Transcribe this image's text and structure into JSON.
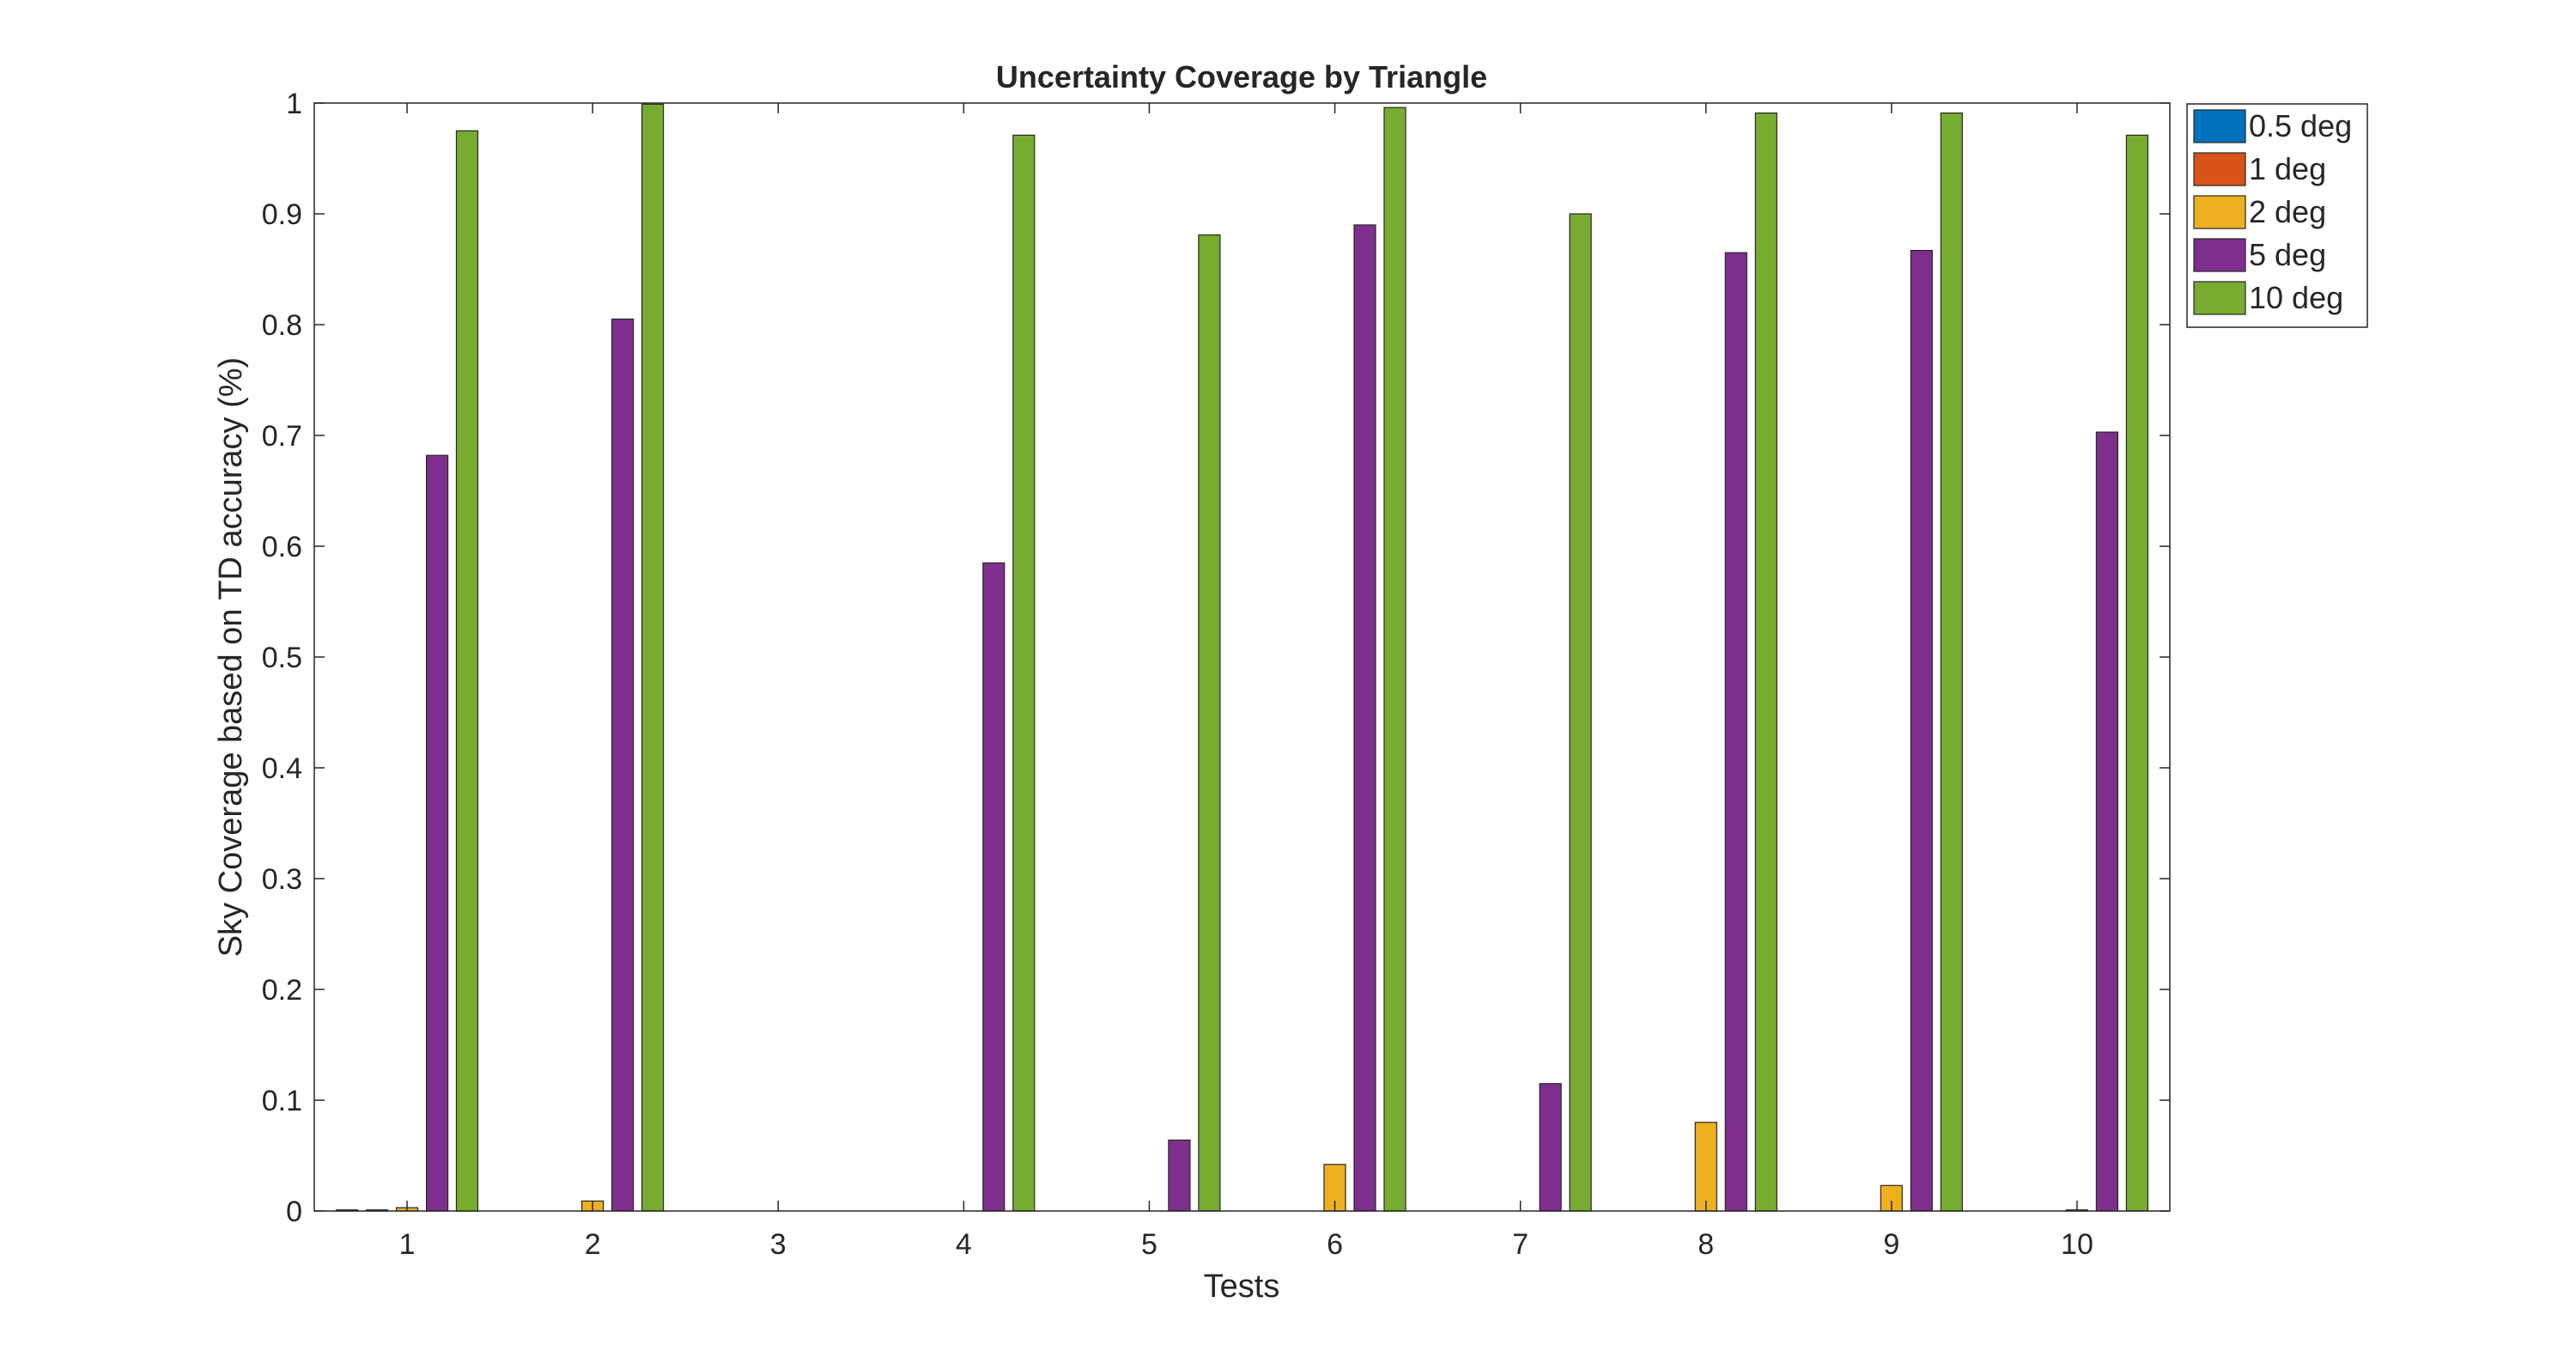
{
  "chart_data": {
    "type": "bar",
    "title": "Uncertainty Coverage by Triangle",
    "xlabel": "Tests",
    "ylabel": "Sky Coverage based on TD accuracy (%)",
    "categories": [
      "1",
      "2",
      "3",
      "4",
      "5",
      "6",
      "7",
      "8",
      "9",
      "10"
    ],
    "ylim": [
      0,
      1
    ],
    "yticks": [
      0,
      0.1,
      0.2,
      0.3,
      0.4,
      0.5,
      0.6,
      0.7,
      0.8,
      0.9,
      1
    ],
    "ytick_labels": [
      "0",
      "0.1",
      "0.2",
      "0.3",
      "0.4",
      "0.5",
      "0.6",
      "0.7",
      "0.8",
      "0.9",
      "1"
    ],
    "grid": false,
    "legend_position": "top-right-outside",
    "series": [
      {
        "name": "0.5 deg",
        "color": "#0072BD",
        "values": [
          0.001,
          0,
          0,
          0,
          0,
          0,
          0,
          0,
          0,
          0
        ]
      },
      {
        "name": "1 deg",
        "color": "#D95319",
        "values": [
          0.001,
          0,
          0,
          0,
          0,
          0,
          0,
          0,
          0,
          0
        ]
      },
      {
        "name": "2 deg",
        "color": "#EDB120",
        "values": [
          0.003,
          0.009,
          0,
          0,
          0,
          0.042,
          0,
          0.08,
          0.023,
          0.001
        ]
      },
      {
        "name": "5 deg",
        "color": "#7E2F8E",
        "values": [
          0.682,
          0.805,
          0,
          0.585,
          0.064,
          0.89,
          0.115,
          0.865,
          0.867,
          0.703
        ]
      },
      {
        "name": "10 deg",
        "color": "#77AC30",
        "values": [
          0.975,
          0.999,
          0,
          0.971,
          0.881,
          0.996,
          0.9,
          0.991,
          0.991,
          0.971
        ]
      }
    ]
  }
}
